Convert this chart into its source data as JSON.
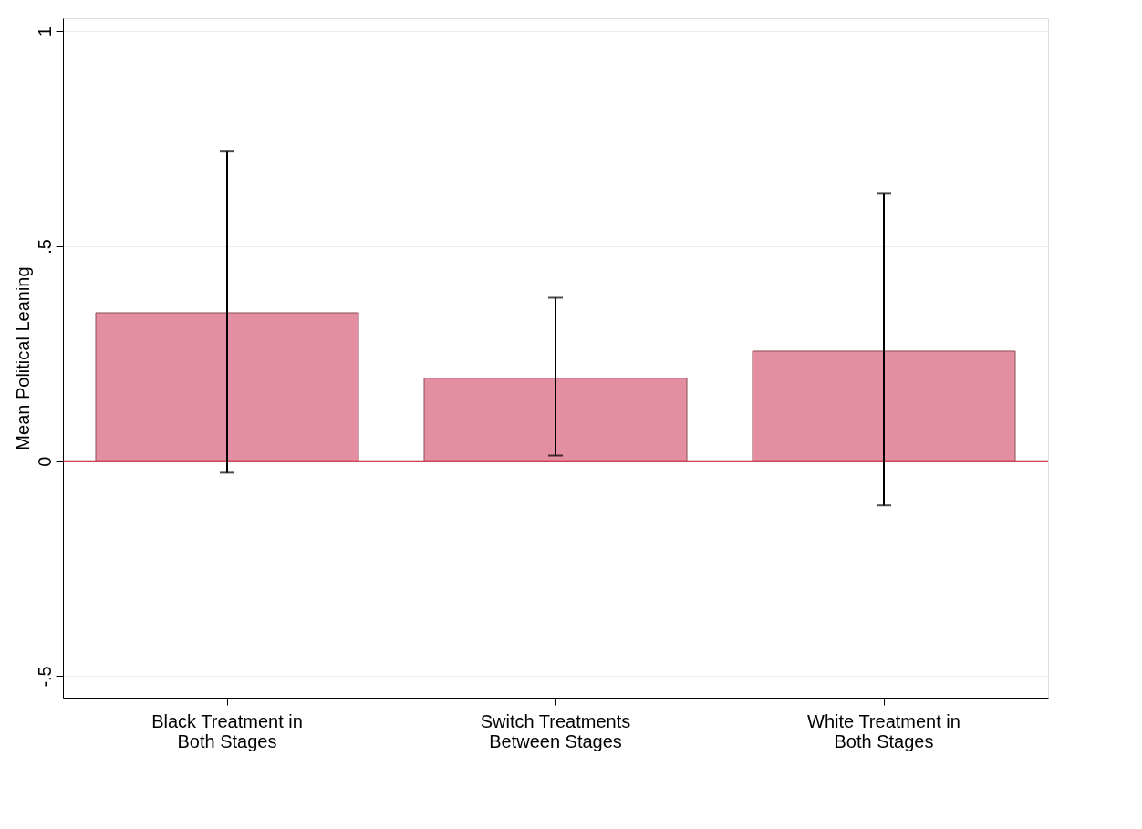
{
  "chart_data": {
    "type": "bar",
    "ylabel": "Mean Political Leaning",
    "categories": [
      "Black Treatment in Both Stages",
      "Switch Treatments Between Stages",
      "White Treatment in Both Stages"
    ],
    "values": [
      0.345,
      0.193,
      0.256
    ],
    "errors": [
      [
        -0.027,
        0.72
      ],
      [
        0.013,
        0.38
      ],
      [
        -0.103,
        0.622
      ]
    ],
    "color": "#e48fa1",
    "ylim": [
      -0.55,
      1.03
    ],
    "yticks": [
      {
        "value": -0.5,
        "label": "-.5"
      },
      0,
      {
        "value": 0.5,
        "label": ".5"
      },
      1
    ],
    "ref_lines": [
      {
        "axis": "y",
        "value": 0,
        "color": "#c8102e"
      }
    ],
    "grid": "y"
  }
}
